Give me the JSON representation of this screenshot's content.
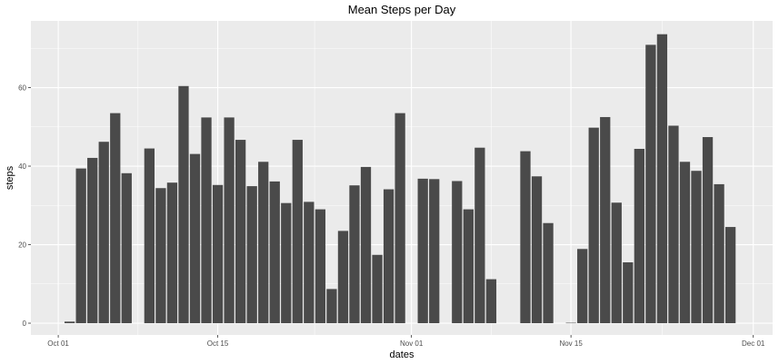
{
  "chart_data": {
    "type": "bar",
    "title": "Mean Steps per Day",
    "xlabel": "dates",
    "ylabel": "steps",
    "x_start": "2012-10-01",
    "dates": [
      "2012-10-01",
      "2012-10-02",
      "2012-10-03",
      "2012-10-04",
      "2012-10-05",
      "2012-10-06",
      "2012-10-07",
      "2012-10-08",
      "2012-10-09",
      "2012-10-10",
      "2012-10-11",
      "2012-10-12",
      "2012-10-13",
      "2012-10-14",
      "2012-10-15",
      "2012-10-16",
      "2012-10-17",
      "2012-10-18",
      "2012-10-19",
      "2012-10-20",
      "2012-10-21",
      "2012-10-22",
      "2012-10-23",
      "2012-10-24",
      "2012-10-25",
      "2012-10-26",
      "2012-10-27",
      "2012-10-28",
      "2012-10-29",
      "2012-10-30",
      "2012-10-31",
      "2012-11-01",
      "2012-11-02",
      "2012-11-03",
      "2012-11-04",
      "2012-11-05",
      "2012-11-06",
      "2012-11-07",
      "2012-11-08",
      "2012-11-09",
      "2012-11-10",
      "2012-11-11",
      "2012-11-12",
      "2012-11-13",
      "2012-11-14",
      "2012-11-15",
      "2012-11-16",
      "2012-11-17",
      "2012-11-18",
      "2012-11-19",
      "2012-11-20",
      "2012-11-21",
      "2012-11-22",
      "2012-11-23",
      "2012-11-24",
      "2012-11-25",
      "2012-11-26",
      "2012-11-27",
      "2012-11-28",
      "2012-11-29",
      "2012-11-30"
    ],
    "values": [
      null,
      0.4,
      39.4,
      42.1,
      46.2,
      53.5,
      38.2,
      null,
      44.5,
      34.4,
      35.8,
      60.4,
      43.1,
      52.4,
      35.2,
      52.4,
      46.7,
      34.9,
      41.1,
      36.1,
      30.6,
      46.7,
      30.9,
      29.0,
      8.7,
      23.5,
      35.1,
      39.8,
      17.4,
      34.1,
      53.5,
      null,
      36.8,
      36.7,
      null,
      36.2,
      29.0,
      44.7,
      11.2,
      null,
      null,
      43.8,
      37.4,
      25.5,
      null,
      0.1,
      18.9,
      49.8,
      52.5,
      30.7,
      15.5,
      44.4,
      70.9,
      73.6,
      50.3,
      41.1,
      38.8,
      47.4,
      35.4,
      24.5,
      null
    ],
    "ylim": [
      -3,
      77
    ],
    "yticks": [
      0,
      20,
      40,
      60
    ],
    "xticks": [
      {
        "date": "2012-10-01",
        "label": "Oct 01"
      },
      {
        "date": "2012-10-15",
        "label": "Oct 15"
      },
      {
        "date": "2012-11-01",
        "label": "Nov 01"
      },
      {
        "date": "2012-11-15",
        "label": "Nov 15"
      },
      {
        "date": "2012-12-01",
        "label": "Dec 01"
      }
    ],
    "grid": true,
    "colors": {
      "bar": "#4a4a4a",
      "panel": "#ebebeb",
      "grid": "#ffffff"
    }
  }
}
